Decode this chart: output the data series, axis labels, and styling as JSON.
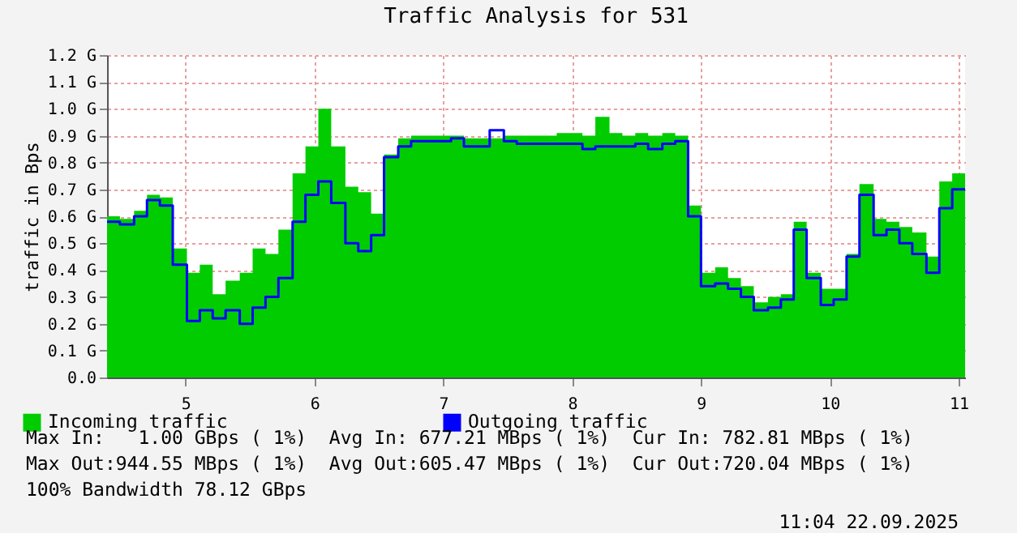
{
  "chart_data": {
    "type": "step",
    "title": "Traffic Analysis for 531",
    "ylabel": "traffic in Bps",
    "x": [
      4.39,
      4.49,
      4.6,
      4.7,
      4.8,
      4.9,
      5.01,
      5.11,
      5.21,
      5.31,
      5.42,
      5.52,
      5.62,
      5.72,
      5.83,
      5.93,
      6.03,
      6.13,
      6.24,
      6.34,
      6.44,
      6.54,
      6.65,
      6.75,
      6.85,
      6.95,
      7.06,
      7.16,
      7.26,
      7.36,
      7.47,
      7.57,
      7.67,
      7.77,
      7.88,
      7.98,
      8.08,
      8.18,
      8.29,
      8.39,
      8.49,
      8.59,
      8.7,
      8.8,
      8.9,
      9.0,
      9.11,
      9.21,
      9.31,
      9.41,
      9.52,
      9.62,
      9.72,
      9.82,
      9.93,
      10.03,
      10.13,
      10.23,
      10.34,
      10.44,
      10.54,
      10.64,
      10.75,
      10.85,
      10.95,
      11.05
    ],
    "series": [
      {
        "name": "Incoming traffic",
        "type": "area",
        "color": "#00cc00",
        "values": [
          0.6,
          0.59,
          0.62,
          0.68,
          0.67,
          0.48,
          0.39,
          0.42,
          0.31,
          0.36,
          0.39,
          0.48,
          0.46,
          0.55,
          0.76,
          0.86,
          1.0,
          0.86,
          0.71,
          0.69,
          0.61,
          0.83,
          0.89,
          0.9,
          0.9,
          0.9,
          0.9,
          0.89,
          0.89,
          0.89,
          0.9,
          0.9,
          0.9,
          0.9,
          0.91,
          0.91,
          0.9,
          0.97,
          0.91,
          0.9,
          0.91,
          0.9,
          0.91,
          0.9,
          0.64,
          0.39,
          0.41,
          0.37,
          0.34,
          0.28,
          0.3,
          0.31,
          0.58,
          0.39,
          0.33,
          0.33,
          0.46,
          0.72,
          0.59,
          0.58,
          0.56,
          0.54,
          0.45,
          0.73,
          0.76,
          0.76
        ]
      },
      {
        "name": "Outgoing traffic",
        "color": "#0000ff",
        "values": [
          0.58,
          0.57,
          0.6,
          0.66,
          0.64,
          0.42,
          0.21,
          0.25,
          0.22,
          0.25,
          0.2,
          0.26,
          0.3,
          0.37,
          0.58,
          0.68,
          0.73,
          0.65,
          0.5,
          0.47,
          0.53,
          0.82,
          0.86,
          0.88,
          0.88,
          0.88,
          0.89,
          0.86,
          0.86,
          0.92,
          0.88,
          0.87,
          0.87,
          0.87,
          0.87,
          0.87,
          0.85,
          0.86,
          0.86,
          0.86,
          0.87,
          0.85,
          0.87,
          0.88,
          0.6,
          0.34,
          0.35,
          0.33,
          0.3,
          0.25,
          0.26,
          0.29,
          0.55,
          0.37,
          0.27,
          0.29,
          0.45,
          0.68,
          0.53,
          0.55,
          0.5,
          0.46,
          0.39,
          0.63,
          0.7,
          0.7
        ]
      }
    ],
    "xlim": [
      4.39,
      11.05
    ],
    "xticks": [
      5,
      6,
      7,
      8,
      9,
      10,
      11
    ],
    "ylim": [
      0,
      1.2
    ],
    "yticks": [
      {
        "value": 0,
        "label": "0.0"
      },
      {
        "value": 0.1,
        "label": "0.1 G"
      },
      {
        "value": 0.2,
        "label": "0.2 G"
      },
      {
        "value": 0.3,
        "label": "0.3 G"
      },
      {
        "value": 0.4,
        "label": "0.4 G"
      },
      {
        "value": 0.5,
        "label": "0.5 G"
      },
      {
        "value": 0.6,
        "label": "0.6 G"
      },
      {
        "value": 0.7,
        "label": "0.7 G"
      },
      {
        "value": 0.8,
        "label": "0.8 G"
      },
      {
        "value": 0.9,
        "label": "0.9 G"
      },
      {
        "value": 1.0,
        "label": "1.0 G"
      },
      {
        "value": 1.1,
        "label": "1.1 G"
      },
      {
        "value": 1.2,
        "label": "1.2 G"
      }
    ],
    "grid": true,
    "legend": "bottom",
    "annotations": [
      "Max In:   1.00 GBps ( 1%)  Avg In: 677.21 MBps ( 1%)  Cur In: 782.81 MBps ( 1%)",
      "Max Out:944.55 MBps ( 1%)  Avg Out:605.47 MBps ( 1%)  Cur Out:720.04 MBps ( 1%)",
      "100% Bandwidth 78.12 GBps",
      "11:04 22.09.2025"
    ]
  }
}
